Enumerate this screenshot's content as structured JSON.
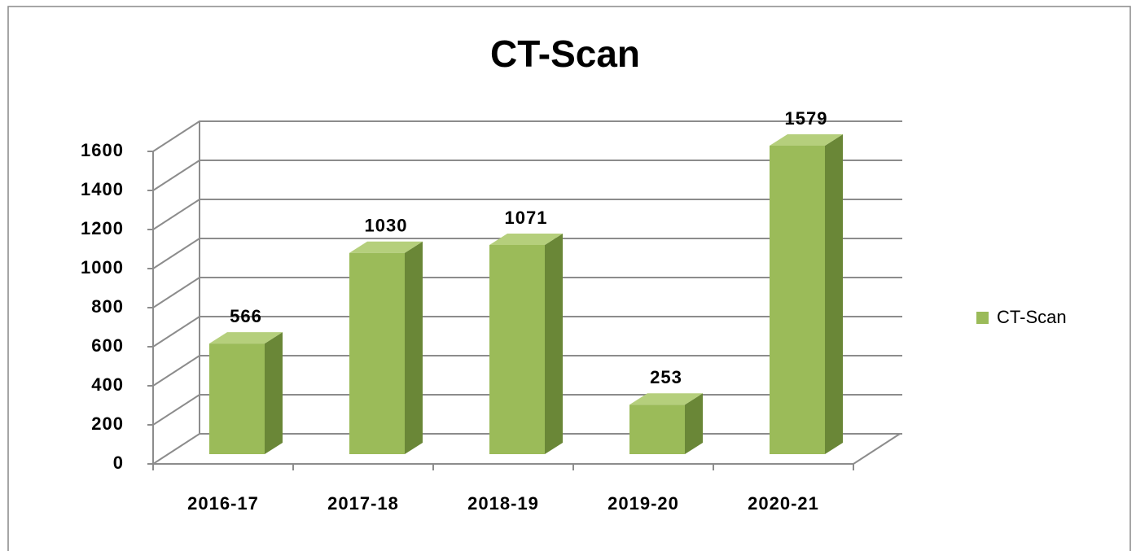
{
  "chart_data": {
    "type": "bar3d",
    "title": "CT-Scan",
    "categories": [
      "2016-17",
      "2017-18",
      "2018-19",
      "2019-20",
      "2020-21"
    ],
    "series": [
      {
        "name": "CT-Scan",
        "color": "#9bbb59",
        "values": [
          566,
          1030,
          1071,
          253,
          1579
        ]
      }
    ],
    "ylim": [
      0,
      1600
    ],
    "yticks": [
      0,
      200,
      400,
      600,
      800,
      1000,
      1200,
      1400,
      1600
    ],
    "grid": true,
    "legend": "right"
  }
}
